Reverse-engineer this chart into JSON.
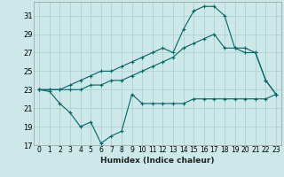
{
  "xlabel": "Humidex (Indice chaleur)",
  "bg_color": "#cce8e8",
  "grid_color": "#b0d0d0",
  "line_color": "#006666",
  "xlim": [
    -0.5,
    23.5
  ],
  "ylim": [
    17,
    32.5
  ],
  "xticks": [
    0,
    1,
    2,
    3,
    4,
    5,
    6,
    7,
    8,
    9,
    10,
    11,
    12,
    13,
    14,
    15,
    16,
    17,
    18,
    19,
    20,
    21,
    22,
    23
  ],
  "yticks": [
    17,
    19,
    21,
    23,
    25,
    27,
    29,
    31
  ],
  "series1_x": [
    0,
    1,
    2,
    3,
    4,
    5,
    6,
    7,
    8,
    9,
    10,
    11,
    12,
    13,
    14,
    15,
    16,
    17,
    18,
    19,
    20,
    21,
    22,
    23
  ],
  "series1_y": [
    23,
    22.8,
    21.5,
    20.5,
    19.0,
    19.5,
    17.2,
    18.0,
    18.5,
    22.5,
    21.5,
    21.5,
    21.5,
    21.5,
    21.5,
    22.0,
    22.0,
    22.0,
    22.0,
    22.0,
    22.0,
    22.0,
    22.0,
    22.5
  ],
  "series2_x": [
    0,
    1,
    2,
    3,
    4,
    5,
    6,
    7,
    8,
    9,
    10,
    11,
    12,
    13,
    14,
    15,
    16,
    17,
    18,
    19,
    20,
    21,
    22,
    23
  ],
  "series2_y": [
    23,
    23,
    23,
    23,
    23,
    23.5,
    23.5,
    24.0,
    24.0,
    24.5,
    25.0,
    25.5,
    26.0,
    26.5,
    27.5,
    28.0,
    28.5,
    29.0,
    27.5,
    27.5,
    27.5,
    27.0,
    24.0,
    22.5
  ],
  "series3_x": [
    0,
    1,
    2,
    3,
    4,
    5,
    6,
    7,
    8,
    9,
    10,
    11,
    12,
    13,
    14,
    15,
    16,
    17,
    18,
    19,
    20,
    21,
    22,
    23
  ],
  "series3_y": [
    23,
    23,
    23,
    23.5,
    24.0,
    24.5,
    25.0,
    25.0,
    25.5,
    26.0,
    26.5,
    27.0,
    27.5,
    27.0,
    29.5,
    31.5,
    32.0,
    32.0,
    31.0,
    27.5,
    27.0,
    27.0,
    24.0,
    22.5
  ]
}
